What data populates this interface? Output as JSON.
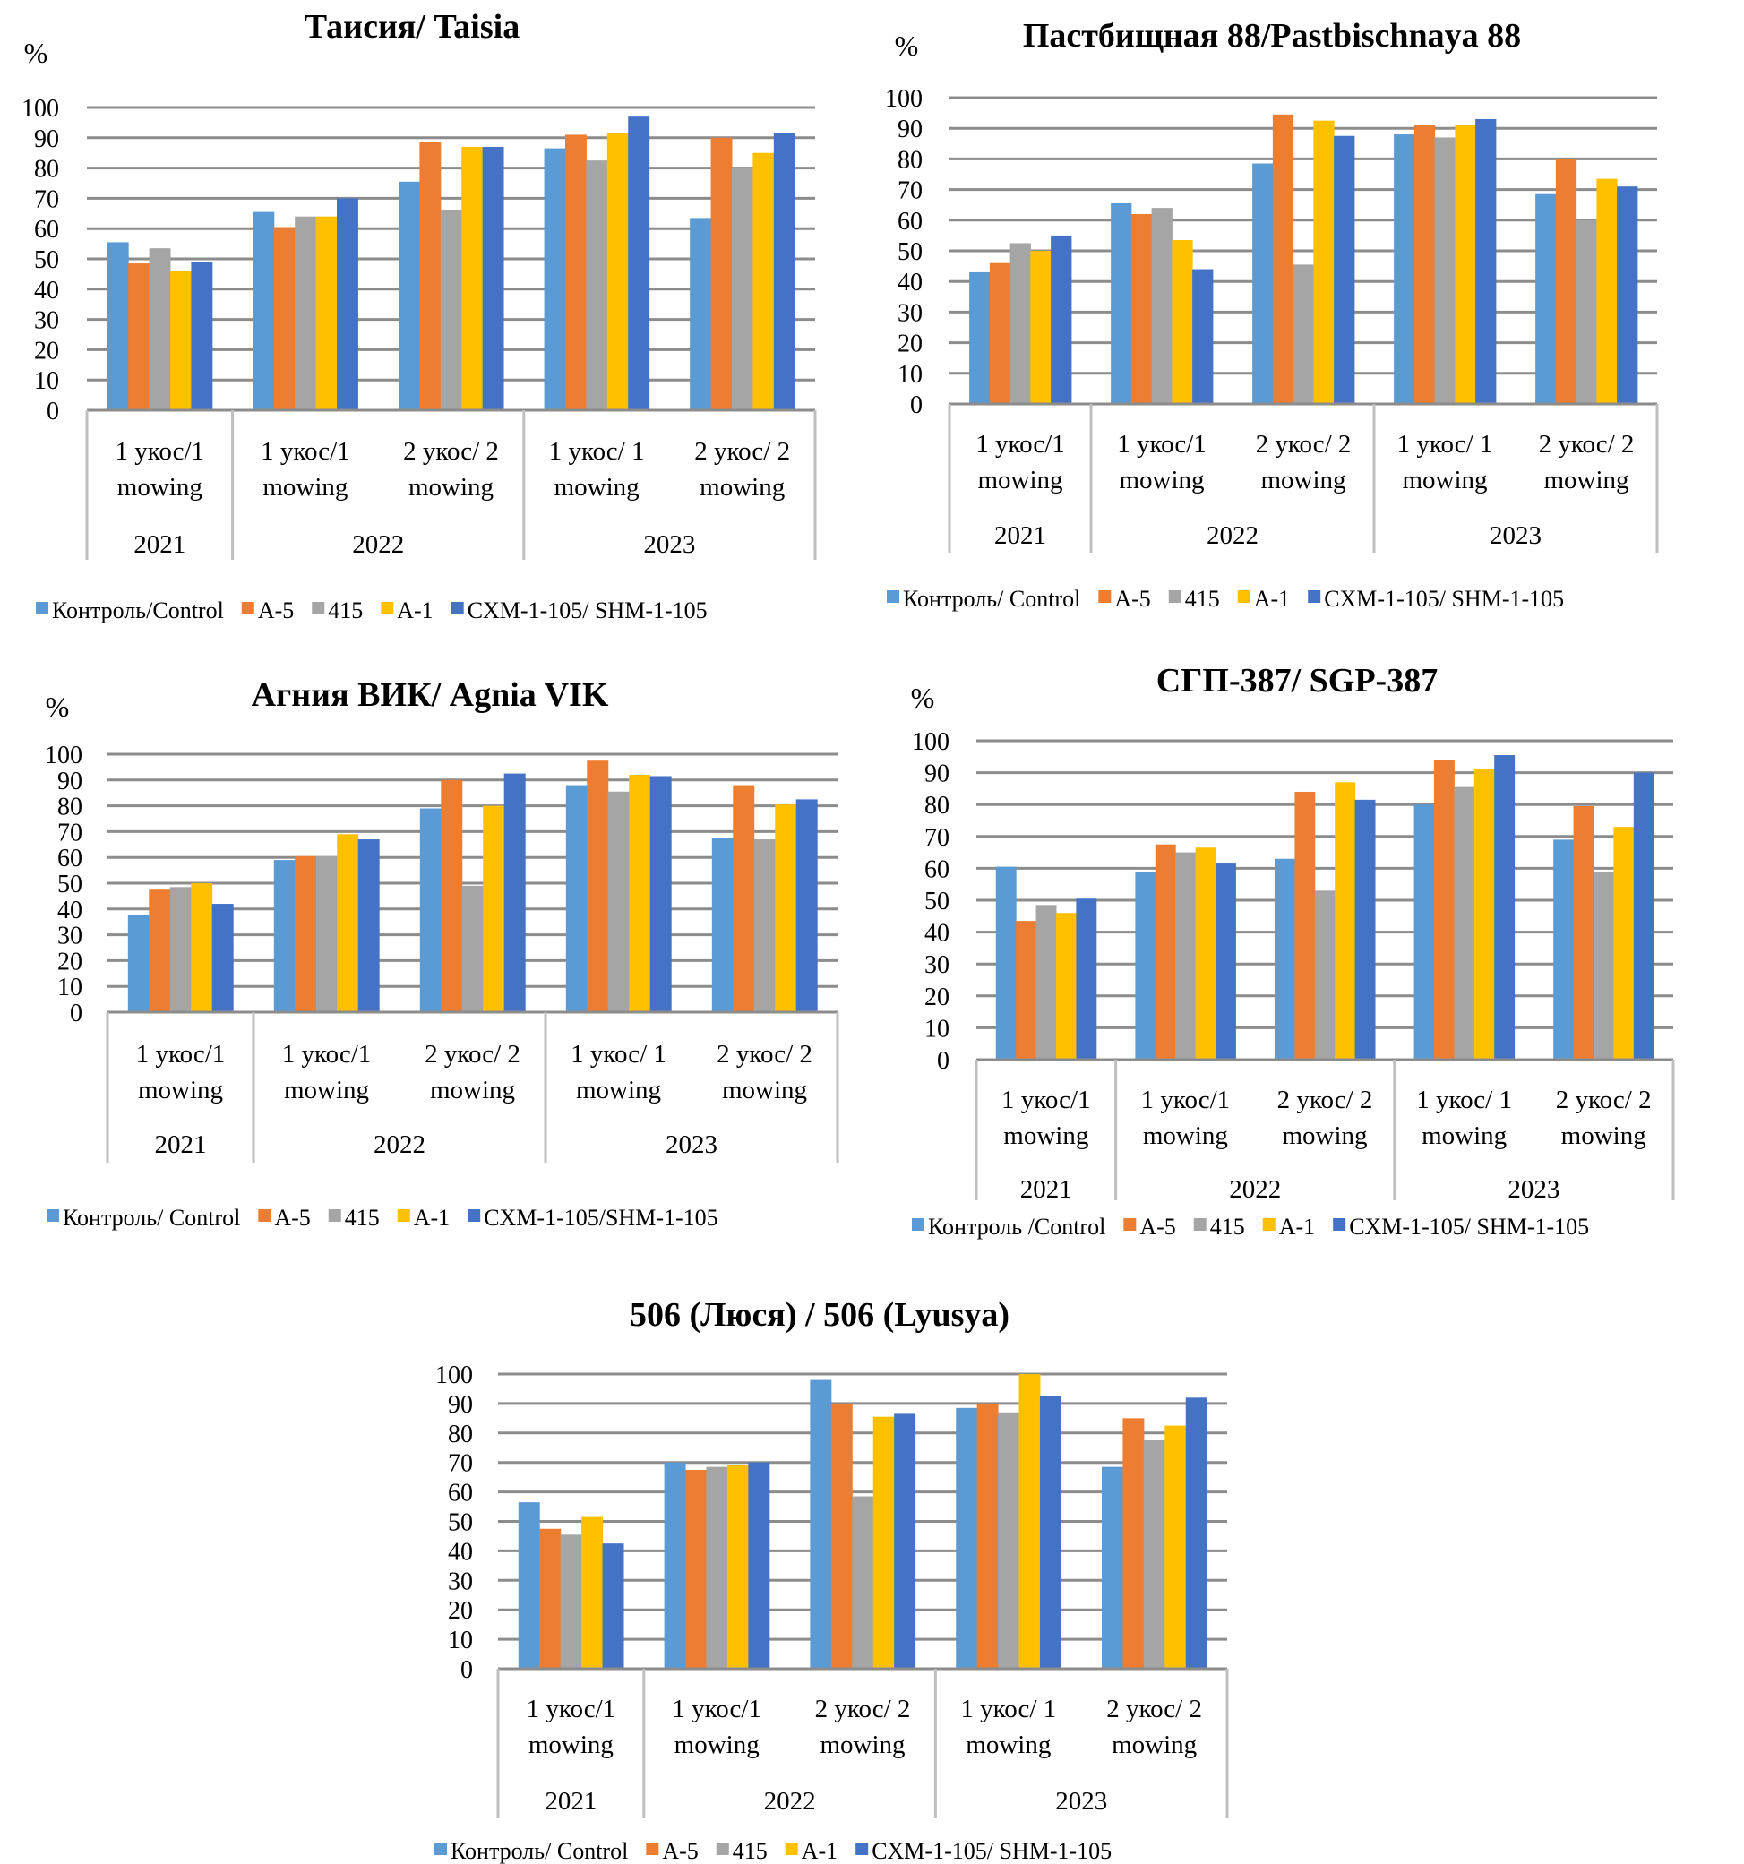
{
  "colors": {
    "control": "#5B9BD5",
    "a5": "#ED7D31",
    "s415": "#A5A5A5",
    "a1": "#FFC000",
    "shm": "#4472C4",
    "grid": "#8C8C8C",
    "category_border": "#BFBFBF"
  },
  "chart_data": [
    {
      "type": "bar",
      "title": "Таисия/ Taisia",
      "ylabel": "%",
      "xlabel": "",
      "ylim": [
        0,
        100
      ],
      "yticks": [
        "0",
        "10",
        "20",
        "30",
        "40",
        "50",
        "60",
        "70",
        "80",
        "90",
        "100"
      ],
      "grid": true,
      "legend_position": "bottom",
      "categories": [
        "1 укос/1 mowing",
        "1 укос/1 mowing",
        "2 укос/ 2 mowing",
        "1 укос/ 1 mowing",
        "2 укос/ 2 mowing"
      ],
      "category_lines": [
        [
          "1 укос/1",
          "mowing"
        ],
        [
          "1 укос/1",
          "mowing"
        ],
        [
          "2 укос/ 2",
          "mowing"
        ],
        [
          "1 укос/ 1",
          "mowing"
        ],
        [
          "2 укос/ 2",
          "mowing"
        ]
      ],
      "year_groups": [
        {
          "label": "2021",
          "span": 1
        },
        {
          "label": "2022",
          "span": 2
        },
        {
          "label": "2023",
          "span": 2
        }
      ],
      "legend": [
        "Контроль/Control",
        "A-5",
        "415",
        "A-1",
        "CXM-1-105/ SHM-1-105"
      ],
      "series": [
        {
          "name": "Контроль/Control",
          "values": [
            55.5,
            65.5,
            75.5,
            86.5,
            63.5
          ]
        },
        {
          "name": "A-5",
          "values": [
            48.5,
            60.5,
            88.5,
            91,
            90
          ]
        },
        {
          "name": "415",
          "values": [
            53.5,
            64,
            66,
            82.5,
            80
          ]
        },
        {
          "name": "A-1",
          "values": [
            46,
            64,
            87,
            91.5,
            85
          ]
        },
        {
          "name": "CXM-1-105/ SHM-1-105",
          "values": [
            49,
            70,
            87,
            97,
            91.5
          ]
        }
      ]
    },
    {
      "type": "bar",
      "title": "Пастбищная 88/Pastbischnaya 88",
      "ylabel": "%",
      "xlabel": "",
      "ylim": [
        0,
        100
      ],
      "yticks": [
        "0",
        "10",
        "20",
        "30",
        "40",
        "50",
        "60",
        "70",
        "80",
        "90",
        "100"
      ],
      "grid": true,
      "legend_position": "bottom",
      "categories": [
        "1 укос/1 mowing",
        "1 укос/1 mowing",
        "2 укос/ 2 mowing",
        "1 укос/ 1 mowing",
        "2 укос/ 2 mowing"
      ],
      "category_lines": [
        [
          "1 укос/1",
          "mowing"
        ],
        [
          "1 укос/1",
          "mowing"
        ],
        [
          "2 укос/ 2",
          "mowing"
        ],
        [
          "1 укос/ 1",
          "mowing"
        ],
        [
          "2 укос/ 2",
          "mowing"
        ]
      ],
      "year_groups": [
        {
          "label": "2021",
          "span": 1
        },
        {
          "label": "2022",
          "span": 2
        },
        {
          "label": "2023",
          "span": 2
        }
      ],
      "legend": [
        "Контроль/ Control",
        "A-5",
        "415",
        "A-1",
        "CXM-1-105/ SHM-1-105"
      ],
      "series": [
        {
          "name": "Контроль/ Control",
          "values": [
            43,
            65.5,
            78.5,
            88,
            68.5
          ]
        },
        {
          "name": "A-5",
          "values": [
            46,
            62,
            94.5,
            91,
            80
          ]
        },
        {
          "name": "415",
          "values": [
            52.5,
            64,
            45.5,
            87,
            60
          ]
        },
        {
          "name": "A-1",
          "values": [
            50,
            53.5,
            92.5,
            91,
            73.5
          ]
        },
        {
          "name": "CXM-1-105/ SHM-1-105",
          "values": [
            55,
            44,
            87.5,
            93,
            71
          ]
        }
      ]
    },
    {
      "type": "bar",
      "title": "Агния ВИК/ Agnia VIK",
      "ylabel": "%",
      "xlabel": "",
      "ylim": [
        0,
        100
      ],
      "yticks": [
        "0",
        "10",
        "20",
        "30",
        "40",
        "50",
        "60",
        "70",
        "80",
        "90",
        "100"
      ],
      "grid": true,
      "legend_position": "bottom",
      "categories": [
        "1 укос/1 mowing",
        "1 укос/1 mowing",
        "2 укос/ 2 mowing",
        "1 укос/ 1 mowing",
        "2 укос/ 2 mowing"
      ],
      "category_lines": [
        [
          "1 укос/1",
          "mowing"
        ],
        [
          "1 укос/1",
          "mowing"
        ],
        [
          "2 укос/ 2",
          "mowing"
        ],
        [
          "1 укос/ 1",
          "mowing"
        ],
        [
          "2 укос/ 2",
          "mowing"
        ]
      ],
      "year_groups": [
        {
          "label": "2021",
          "span": 1
        },
        {
          "label": "2022",
          "span": 2
        },
        {
          "label": "2023",
          "span": 2
        }
      ],
      "legend": [
        "Контроль/ Control",
        "A-5",
        "415",
        "A-1",
        "CXM-1-105/SHM-1-105"
      ],
      "series": [
        {
          "name": "Контроль/ Control",
          "values": [
            37.5,
            59,
            79,
            88,
            67.5
          ]
        },
        {
          "name": "A-5",
          "values": [
            47.5,
            60.5,
            90,
            97.5,
            88
          ]
        },
        {
          "name": "415",
          "values": [
            48.5,
            60.5,
            49,
            85.5,
            67
          ]
        },
        {
          "name": "A-1",
          "values": [
            50,
            69,
            80,
            92,
            80.5
          ]
        },
        {
          "name": "CXM-1-105/SHM-1-105",
          "values": [
            42,
            67,
            92.5,
            91.5,
            82.5
          ]
        }
      ]
    },
    {
      "type": "bar",
      "title": "СГП-387/ SGP-387",
      "ylabel": "%",
      "xlabel": "",
      "ylim": [
        0,
        100
      ],
      "yticks": [
        "0",
        "10",
        "20",
        "30",
        "40",
        "50",
        "60",
        "70",
        "80",
        "90",
        "100"
      ],
      "grid": true,
      "legend_position": "bottom",
      "categories": [
        "1 укос/1 mowing",
        "1 укос/1 mowing",
        "2 укос/ 2 mowing",
        "1 укос/ 1 mowing",
        "2 укос/ 2 mowing"
      ],
      "category_lines": [
        [
          "1 укос/1",
          "mowing"
        ],
        [
          "1 укос/1",
          "mowing"
        ],
        [
          "2 укос/ 2",
          "mowing"
        ],
        [
          "1 укос/ 1",
          "mowing"
        ],
        [
          "2 укос/ 2",
          "mowing"
        ]
      ],
      "year_groups": [
        {
          "label": "2021",
          "span": 1
        },
        {
          "label": "2022",
          "span": 2
        },
        {
          "label": "2023",
          "span": 2
        }
      ],
      "legend": [
        "Контроль /Control",
        "A-5",
        "415",
        "A-1",
        "CXM-1-105/ SHM-1-105"
      ],
      "series": [
        {
          "name": "Контроль /Control",
          "values": [
            60.5,
            59,
            63,
            80,
            69
          ]
        },
        {
          "name": "A-5",
          "values": [
            43.5,
            67.5,
            84,
            94,
            79.5
          ]
        },
        {
          "name": "415",
          "values": [
            48.5,
            65,
            53,
            85.5,
            59
          ]
        },
        {
          "name": "A-1",
          "values": [
            46,
            66.5,
            87,
            91,
            73
          ]
        },
        {
          "name": "CXM-1-105/ SHM-1-105",
          "values": [
            50.5,
            61.5,
            81.5,
            95.5,
            90
          ]
        }
      ]
    },
    {
      "type": "bar",
      "title": "506 (Люся) / 506 (Lyusya)",
      "ylabel": "",
      "xlabel": "",
      "ylim": [
        0,
        100
      ],
      "yticks": [
        "0",
        "10",
        "20",
        "30",
        "40",
        "50",
        "60",
        "70",
        "80",
        "90",
        "100"
      ],
      "grid": true,
      "legend_position": "bottom",
      "categories": [
        "1 укос/1 mowing",
        "1 укос/1 mowing",
        "2 укос/ 2 mowing",
        "1 укос/ 1 mowing",
        "2 укос/ 2 mowing"
      ],
      "category_lines": [
        [
          "1 укос/1",
          "mowing"
        ],
        [
          "1 укос/1",
          "mowing"
        ],
        [
          "2 укос/ 2",
          "mowing"
        ],
        [
          "1 укос/ 1",
          "mowing"
        ],
        [
          "2 укос/ 2",
          "mowing"
        ]
      ],
      "year_groups": [
        {
          "label": "2021",
          "span": 1
        },
        {
          "label": "2022",
          "span": 2
        },
        {
          "label": "2023",
          "span": 2
        }
      ],
      "legend": [
        "Контроль/ Control",
        "A-5",
        "415",
        "A-1",
        "CXM-1-105/ SHM-1-105"
      ],
      "series": [
        {
          "name": "Контроль/ Control",
          "values": [
            56.5,
            70,
            98,
            88.5,
            68.5
          ]
        },
        {
          "name": "A-5",
          "values": [
            47.5,
            67.5,
            90,
            90,
            85
          ]
        },
        {
          "name": "415",
          "values": [
            45.5,
            68.5,
            58.5,
            87,
            77.5
          ]
        },
        {
          "name": "A-1",
          "values": [
            51.5,
            69,
            85.5,
            100,
            82.5
          ]
        },
        {
          "name": "CXM-1-105/ SHM-1-105",
          "values": [
            42.5,
            70,
            86.5,
            92.5,
            92
          ]
        }
      ]
    }
  ]
}
